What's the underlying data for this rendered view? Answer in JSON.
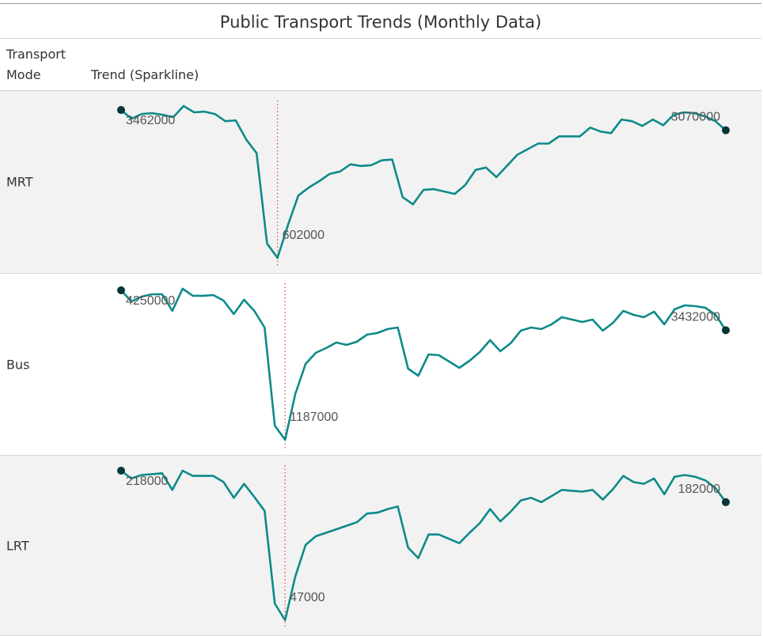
{
  "title": "Public Transport Trends (Monthly Data)",
  "columns": [
    "Transport Mode",
    "Trend (Sparkline)"
  ],
  "chart_data": [
    {
      "type": "line",
      "title": "MRT",
      "color": "#0e8a8a",
      "values": [
        3462000,
        3292000,
        3385000,
        3400000,
        3369000,
        3323000,
        3539000,
        3416000,
        3431000,
        3385000,
        3246000,
        3261000,
        2890000,
        2627000,
        881000,
        602000,
        1236000,
        1808000,
        1962000,
        2086000,
        2225000,
        2272000,
        2411000,
        2380000,
        2395000,
        2488000,
        2503000,
        1777000,
        1638000,
        1916000,
        1931000,
        1885000,
        1839000,
        2009000,
        2303000,
        2349000,
        2164000,
        2380000,
        2596000,
        2704000,
        2813000,
        2813000,
        2952000,
        2952000,
        2952000,
        3122000,
        3045000,
        3014000,
        3277000,
        3246000,
        3153000,
        3277000,
        3168000,
        3369000,
        3416000,
        3400000,
        3338000,
        3246000,
        3070000
      ]
    },
    {
      "type": "line",
      "title": "Bus",
      "color": "#0e8a8a",
      "values": [
        4250000,
        4023000,
        4120000,
        4169000,
        4169000,
        3829000,
        4282000,
        4137000,
        4137000,
        4153000,
        4039000,
        3764000,
        4056000,
        3829000,
        3488000,
        1479000,
        1187000,
        2127000,
        2743000,
        2970000,
        3067000,
        3180000,
        3132000,
        3197000,
        3342000,
        3375000,
        3456000,
        3488000,
        2646000,
        2500000,
        2937000,
        2921000,
        2791000,
        2662000,
        2808000,
        2986000,
        3229000,
        3002000,
        3164000,
        3423000,
        3488000,
        3456000,
        3553000,
        3699000,
        3650000,
        3602000,
        3650000,
        3423000,
        3586000,
        3829000,
        3748000,
        3699000,
        3812000,
        3553000,
        3861000,
        3942000,
        3926000,
        3893000,
        3748000,
        3432000
      ]
    },
    {
      "type": "line",
      "title": "LRT",
      "color": "#0e8a8a",
      "values": [
        218000,
        209000,
        213000,
        214000,
        215000,
        196000,
        218000,
        212000,
        212000,
        212000,
        205000,
        187000,
        203000,
        188000,
        172000,
        66000,
        47000,
        97000,
        133000,
        143000,
        147000,
        151000,
        155000,
        159000,
        169000,
        170000,
        174000,
        177000,
        130000,
        118000,
        145000,
        145000,
        140000,
        135000,
        147000,
        158000,
        174000,
        160000,
        171000,
        184000,
        187000,
        182000,
        189000,
        196000,
        195000,
        194000,
        196000,
        185000,
        197000,
        212000,
        205000,
        203000,
        209000,
        191000,
        211000,
        213000,
        211000,
        207000,
        198000,
        182000
      ]
    }
  ]
}
